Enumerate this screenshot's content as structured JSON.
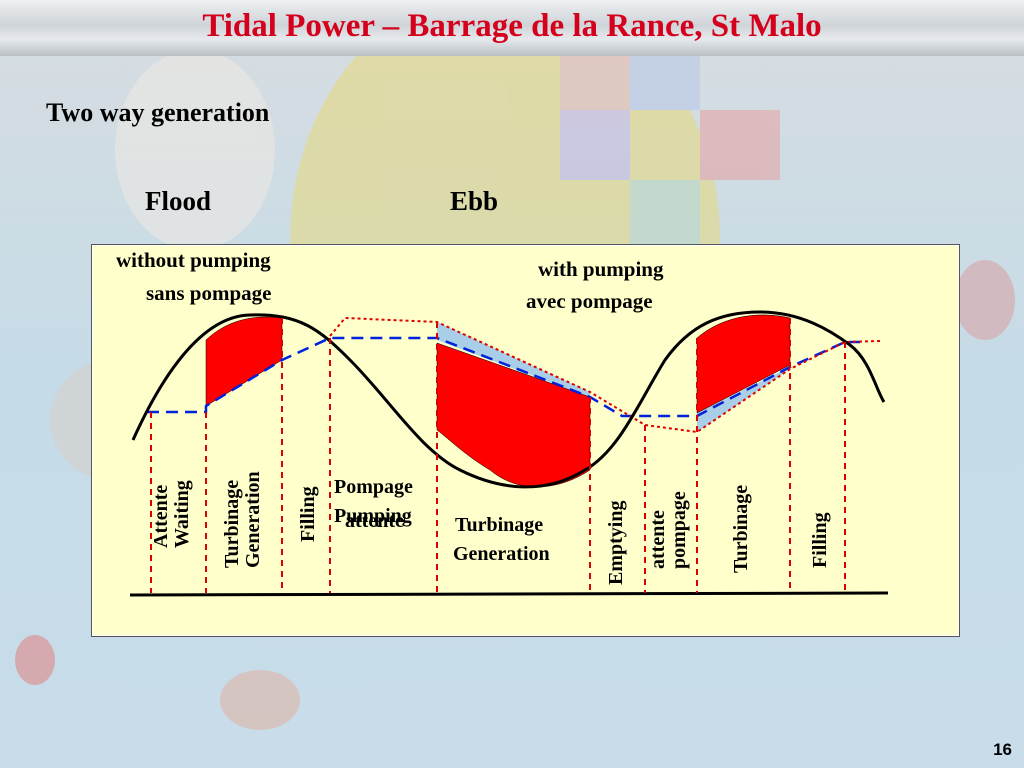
{
  "slide": {
    "title": "Tidal Power – Barrage de la Rance, St Malo",
    "subtitle": "Two way generation",
    "page_number": "16"
  },
  "phases": {
    "flood": "Flood",
    "ebb": "Ebb"
  },
  "annotations": {
    "without_pumping": "without pumping",
    "sans_pompage": "sans pompage",
    "with_pumping": "with pumping",
    "avec_pompage": "avec pompage"
  },
  "stage_labels": {
    "attente": "Attente",
    "waiting": "Waiting",
    "turbinage_1": "Turbinage",
    "generation_1": "Generation",
    "filling_1": "Filling",
    "pompage": "Pompage",
    "pumping": "Pumping",
    "attente_2": "attente",
    "turbinage_2": "Turbinage",
    "generation_2": "Generation",
    "emptying": "Emptying",
    "attente_3": "attente",
    "pompage_2": "pompage",
    "turbinage_3": "Turbinage",
    "filling_2": "Filling"
  },
  "colors": {
    "title": "#d4001c",
    "panel": "#ffffcc",
    "generation_fill": "#ff0000",
    "pumping_fill": "#a9cfe8",
    "basin_level_line": "#0022dd",
    "pumped_level_line": "#dd0000",
    "tide_curve": "#000000",
    "phase_divider": "#dd0000"
  }
}
